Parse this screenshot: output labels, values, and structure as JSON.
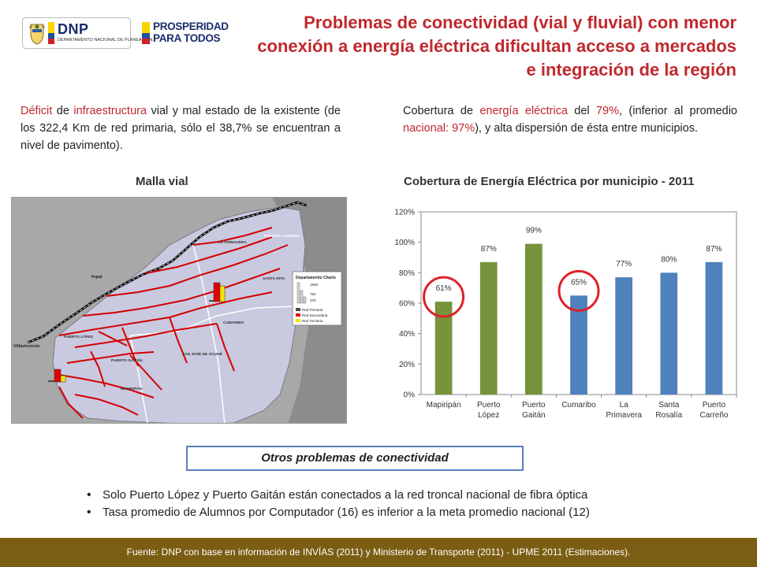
{
  "header": {
    "logo_dnp": "DNP",
    "logo_dnp_sub": "DEPARTAMENTO NACIONAL DE PLANEACIÓN",
    "logo_prosperidad_line1": "PROSPERIDAD",
    "logo_prosperidad_line2": "PARA TODOS",
    "title": "Problemas de conectividad (vial y fluvial) con menor conexión a energía eléctrica dificultan acceso a mercados e integración de la región"
  },
  "left": {
    "para_hl1": "Déficit",
    "para_t1": " de ",
    "para_hl2": "infraestructura",
    "para_t2": " vial y mal estado de la existente (de los 322,4 Km de red primaria, sólo el 38,7% se encuentran a nivel de pavimento).",
    "subtitle": "Malla vial"
  },
  "right": {
    "para_t1": "Cobertura de ",
    "para_hl1": "energía eléctrica",
    "para_t2": " del ",
    "para_hl2": "79%",
    "para_t3": ", (inferior al promedio ",
    "para_hl3": "nacional: 97%",
    "para_t4": "), y alta dispersión de ésta entre municipios.",
    "subtitle": "Cobertura de Energía Eléctrica por municipio - 2011"
  },
  "map": {
    "places": [
      "PUERTO CARREÑO",
      "LA PRIMAVERA",
      "Yopal",
      "SANTA RITA",
      "CUMARIBO",
      "PUERTO LÓPEZ",
      "Villavicencio",
      "PUERTO GAITÁN",
      "SAN JOSÉ DE OCUNÉ",
      "MAPIRIPÁN"
    ],
    "legend_title": "Departamento Charts",
    "legend_scale": [
      "1500",
      "750",
      "375"
    ],
    "legend_items": [
      "Red Primaria",
      "Red Secundaria",
      "Red Terciaria"
    ],
    "colors": {
      "primary": "#4a4a4a",
      "secondary": "#e10000",
      "tertiary": "#f2e600",
      "land": "#c9c9e0",
      "outside": "#a9a9a9",
      "road": "#d40000"
    }
  },
  "chart_data": {
    "type": "bar",
    "categories": [
      "Mapiripán",
      "Puerto López",
      "Puerto Gaitán",
      "Cumaribo",
      "La Primavera",
      "Santa Rosalía",
      "Puerto Carreño"
    ],
    "category_lines": [
      [
        "Mapiripán"
      ],
      [
        "Puerto",
        "López"
      ],
      [
        "Puerto",
        "Gaitán"
      ],
      [
        "Cumaribo"
      ],
      [
        "La",
        "Primavera"
      ],
      [
        "Santa",
        "Rosalía"
      ],
      [
        "Puerto",
        "Carreño"
      ]
    ],
    "values": [
      61,
      87,
      99,
      65,
      77,
      80,
      87
    ],
    "value_labels": [
      "61%",
      "87%",
      "99%",
      "65%",
      "77%",
      "80%",
      "87%"
    ],
    "bar_colors": [
      "#77933c",
      "#77933c",
      "#77933c",
      "#4f81bd",
      "#4f81bd",
      "#4f81bd",
      "#4f81bd"
    ],
    "highlighted": [
      0,
      3
    ],
    "highlight_color": "#e0202a",
    "ylim": [
      0,
      120
    ],
    "yticks": [
      0,
      20,
      40,
      60,
      80,
      100,
      120
    ],
    "ytick_labels": [
      "0%",
      "20%",
      "40%",
      "60%",
      "80%",
      "100%",
      "120%"
    ],
    "title": "",
    "xlabel": "",
    "ylabel": "",
    "grid": false
  },
  "other": {
    "box_title": "Otros problemas de conectividad",
    "bullets": [
      "Solo Puerto López y Puerto Gaitán están conectados a la red troncal nacional de fibra óptica",
      "Tasa promedio de Alumnos por Computador (16) es inferior a la meta promedio nacional (12)"
    ]
  },
  "footer": {
    "text": "Fuente: DNP con base en información de INVÍAS (2011) y Ministerio de Transporte (2011) - UPME 2011 (Estimaciones)."
  }
}
